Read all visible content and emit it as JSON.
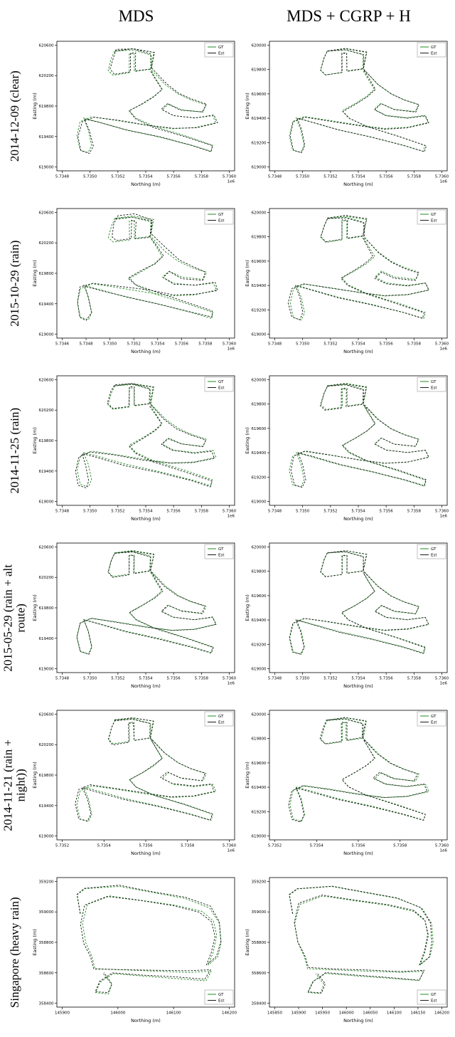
{
  "columns": [
    "MDS",
    "MDS + CGRP + H"
  ],
  "rows": [
    {
      "label": "2014-12-09 (clear)"
    },
    {
      "label": "2015-10-29 (rain)"
    },
    {
      "label": "2014-11-25 (rain)"
    },
    {
      "label": "2015-05-29 (rain + alt\nroute)"
    },
    {
      "label": "2014-11-21 (rain +\nnight))"
    },
    {
      "label": "Singapore (heavy rain)"
    }
  ],
  "colors": {
    "gt": "#228B22",
    "est": "#1a1a1a",
    "frame": "#000000",
    "legend_border": "#999999"
  },
  "routes": {
    "oxford": [
      [
        0.31,
        0.96
      ],
      [
        0.42,
        0.98
      ],
      [
        0.55,
        0.95
      ],
      [
        0.53,
        0.81
      ],
      [
        0.43,
        0.79
      ],
      [
        0.43,
        0.94
      ],
      [
        0.4,
        0.94
      ],
      [
        0.4,
        0.78
      ],
      [
        0.3,
        0.76
      ],
      [
        0.27,
        0.8
      ],
      [
        0.29,
        0.9
      ],
      [
        0.31,
        0.96
      ],
      [
        0.42,
        0.97
      ],
      [
        0.53,
        0.93
      ],
      [
        0.53,
        0.81
      ],
      [
        0.62,
        0.68
      ],
      [
        0.7,
        0.6
      ],
      [
        0.78,
        0.55
      ],
      [
        0.87,
        0.51
      ],
      [
        0.85,
        0.45
      ],
      [
        0.72,
        0.47
      ],
      [
        0.64,
        0.52
      ],
      [
        0.6,
        0.47
      ],
      [
        0.67,
        0.42
      ],
      [
        0.8,
        0.4
      ],
      [
        0.91,
        0.42
      ],
      [
        0.93,
        0.36
      ],
      [
        0.8,
        0.32
      ],
      [
        0.66,
        0.31
      ],
      [
        0.5,
        0.34
      ],
      [
        0.32,
        0.38
      ],
      [
        0.17,
        0.41
      ],
      [
        0.1,
        0.37
      ],
      [
        0.08,
        0.25
      ],
      [
        0.1,
        0.13
      ],
      [
        0.15,
        0.11
      ],
      [
        0.17,
        0.17
      ],
      [
        0.15,
        0.3
      ],
      [
        0.12,
        0.4
      ],
      [
        0.2,
        0.37
      ],
      [
        0.38,
        0.3
      ],
      [
        0.58,
        0.24
      ],
      [
        0.78,
        0.17
      ],
      [
        0.9,
        0.12
      ],
      [
        0.91,
        0.17
      ],
      [
        0.74,
        0.25
      ],
      [
        0.55,
        0.33
      ],
      [
        0.44,
        0.4
      ],
      [
        0.4,
        0.46
      ],
      [
        0.48,
        0.52
      ],
      [
        0.55,
        0.58
      ],
      [
        0.6,
        0.64
      ],
      [
        0.56,
        0.73
      ],
      [
        0.53,
        0.8
      ]
    ],
    "singapore": [
      [
        0.1,
        0.74
      ],
      [
        0.08,
        0.9
      ],
      [
        0.13,
        0.95
      ],
      [
        0.34,
        0.97
      ],
      [
        0.54,
        0.92
      ],
      [
        0.74,
        0.87
      ],
      [
        0.89,
        0.79
      ],
      [
        0.95,
        0.66
      ],
      [
        0.96,
        0.5
      ],
      [
        0.94,
        0.38
      ],
      [
        0.88,
        0.31
      ],
      [
        0.91,
        0.42
      ],
      [
        0.93,
        0.56
      ],
      [
        0.91,
        0.68
      ],
      [
        0.84,
        0.76
      ],
      [
        0.68,
        0.81
      ],
      [
        0.48,
        0.85
      ],
      [
        0.28,
        0.89
      ],
      [
        0.14,
        0.82
      ],
      [
        0.11,
        0.66
      ],
      [
        0.13,
        0.5
      ],
      [
        0.17,
        0.38
      ],
      [
        0.19,
        0.28
      ],
      [
        0.36,
        0.27
      ],
      [
        0.56,
        0.26
      ],
      [
        0.76,
        0.25
      ],
      [
        0.9,
        0.26
      ],
      [
        0.87,
        0.18
      ],
      [
        0.68,
        0.2
      ],
      [
        0.48,
        0.22
      ],
      [
        0.3,
        0.24
      ],
      [
        0.22,
        0.17
      ],
      [
        0.19,
        0.08
      ],
      [
        0.27,
        0.07
      ],
      [
        0.29,
        0.15
      ],
      [
        0.24,
        0.24
      ]
    ]
  },
  "chart_data": [
    {
      "type": "line",
      "row": 0,
      "col": 0,
      "route": "oxford",
      "xlabel": "Northing (m)",
      "ylabel": "Easting (m)",
      "x_offset_label": "1e6",
      "xticks": [
        "5.7348",
        "5.7350",
        "5.7352",
        "5.7354",
        "5.7356",
        "5.7358",
        "5.7360"
      ],
      "yticks": [
        "619000",
        "619400",
        "619800",
        "620200",
        "620600"
      ],
      "legend": {
        "loc": "upper right",
        "entries": [
          {
            "label": "GT",
            "color": "gt"
          },
          {
            "label": "Est",
            "color": "est"
          }
        ]
      },
      "series": [
        {
          "name": "GT",
          "color": "gt",
          "noise": 0.003,
          "seed": 21
        },
        {
          "name": "Est",
          "color": "est",
          "noise": 0.016,
          "seed": 2
        }
      ]
    },
    {
      "type": "line",
      "row": 0,
      "col": 1,
      "route": "oxford",
      "xlabel": "Northing (m)",
      "ylabel": "Easting (m)",
      "x_offset_label": "1e6",
      "xticks": [
        "5.7348",
        "5.7350",
        "5.7352",
        "5.7354",
        "5.7356",
        "5.7358",
        "5.7360"
      ],
      "yticks": [
        "619000",
        "619200",
        "619400",
        "619600",
        "619800",
        "620000"
      ],
      "legend": {
        "loc": "upper right",
        "entries": [
          {
            "label": "GT",
            "color": "gt"
          },
          {
            "label": "Est",
            "color": "est"
          }
        ]
      },
      "series": [
        {
          "name": "GT",
          "color": "gt",
          "noise": 0.003,
          "seed": 22
        },
        {
          "name": "Est",
          "color": "est",
          "noise": 0.007,
          "seed": 3
        }
      ]
    },
    {
      "type": "line",
      "row": 1,
      "col": 0,
      "route": "oxford",
      "xlabel": "Northing (m)",
      "ylabel": "Easting (m)",
      "x_offset_label": "1e6",
      "xticks": [
        "5.7346",
        "5.7348",
        "5.7350",
        "5.7352",
        "5.7354",
        "5.7356",
        "5.7358",
        "5.7360"
      ],
      "yticks": [
        "619000",
        "619400",
        "619800",
        "620200",
        "620600"
      ],
      "legend": {
        "loc": "upper right",
        "entries": [
          {
            "label": "GT",
            "color": "gt"
          },
          {
            "label": "Est",
            "color": "est"
          }
        ]
      },
      "series": [
        {
          "name": "GT",
          "color": "gt",
          "noise": 0.004,
          "seed": 23
        },
        {
          "name": "Est",
          "color": "est",
          "noise": 0.038,
          "seed": 5
        }
      ]
    },
    {
      "type": "line",
      "row": 1,
      "col": 1,
      "route": "oxford",
      "xlabel": "Northing (m)",
      "ylabel": "Easting (m)",
      "x_offset_label": "1e6",
      "xticks": [
        "5.7348",
        "5.7350",
        "5.7352",
        "5.7354",
        "5.7356",
        "5.7358",
        "5.7360"
      ],
      "yticks": [
        "619000",
        "619200",
        "619400",
        "619600",
        "619800",
        "620000"
      ],
      "legend": {
        "loc": "upper right",
        "entries": [
          {
            "label": "GT",
            "color": "gt"
          },
          {
            "label": "Est",
            "color": "est"
          }
        ]
      },
      "series": [
        {
          "name": "GT",
          "color": "gt",
          "noise": 0.003,
          "seed": 24
        },
        {
          "name": "Est",
          "color": "est",
          "noise": 0.012,
          "seed": 6
        }
      ]
    },
    {
      "type": "line",
      "row": 2,
      "col": 0,
      "route": "oxford",
      "xlabel": "Northing (m)",
      "ylabel": "Easting (m)",
      "x_offset_label": "1e6",
      "xticks": [
        "5.7348",
        "5.7350",
        "5.7352",
        "5.7354",
        "5.7356",
        "5.7358",
        "5.7360"
      ],
      "yticks": [
        "619000",
        "619400",
        "619800",
        "620200",
        "620600"
      ],
      "legend": {
        "loc": "upper right",
        "entries": [
          {
            "label": "GT",
            "color": "gt"
          },
          {
            "label": "Est",
            "color": "est"
          }
        ]
      },
      "series": [
        {
          "name": "GT",
          "color": "gt",
          "noise": 0.003,
          "seed": 25
        },
        {
          "name": "Est",
          "color": "est",
          "noise": 0.018,
          "seed": 8
        }
      ]
    },
    {
      "type": "line",
      "row": 2,
      "col": 1,
      "route": "oxford",
      "xlabel": "Northing (m)",
      "ylabel": "Easting (m)",
      "x_offset_label": "1e6",
      "xticks": [
        "5.7348",
        "5.7350",
        "5.7352",
        "5.7354",
        "5.7356",
        "5.7358",
        "5.7360"
      ],
      "yticks": [
        "619000",
        "619200",
        "619400",
        "619600",
        "619800",
        "620000"
      ],
      "legend": {
        "loc": "upper right",
        "entries": [
          {
            "label": "GT",
            "color": "gt"
          },
          {
            "label": "Est",
            "color": "est"
          }
        ]
      },
      "series": [
        {
          "name": "GT",
          "color": "gt",
          "noise": 0.003,
          "seed": 26
        },
        {
          "name": "Est",
          "color": "est",
          "noise": 0.008,
          "seed": 9
        }
      ]
    },
    {
      "type": "line",
      "row": 3,
      "col": 0,
      "route": "oxford",
      "xlabel": "Northing (m)",
      "ylabel": "Easting (m)",
      "x_offset_label": "1e6",
      "xticks": [
        "5.7348",
        "5.7350",
        "5.7352",
        "5.7354",
        "5.7356",
        "5.7358",
        "5.7360"
      ],
      "yticks": [
        "619000",
        "619400",
        "619800",
        "620200",
        "620600"
      ],
      "legend": {
        "loc": "upper right",
        "entries": [
          {
            "label": "GT",
            "color": "gt"
          },
          {
            "label": "Est",
            "color": "est"
          }
        ]
      },
      "series": [
        {
          "name": "GT",
          "color": "gt",
          "noise": 0.003,
          "seed": 27
        },
        {
          "name": "Est",
          "color": "est",
          "noise": 0.01,
          "seed": 10
        }
      ]
    },
    {
      "type": "line",
      "row": 3,
      "col": 1,
      "route": "oxford",
      "xlabel": "Northing (m)",
      "ylabel": "Easting (m)",
      "x_offset_label": "1e6",
      "xticks": [
        "5.7348",
        "5.7350",
        "5.7352",
        "5.7354",
        "5.7356",
        "5.7358",
        "5.7360"
      ],
      "yticks": [
        "619000",
        "619200",
        "619400",
        "619600",
        "619800",
        "620000"
      ],
      "legend": {
        "loc": "upper right",
        "entries": [
          {
            "label": "GT",
            "color": "gt"
          },
          {
            "label": "Est",
            "color": "est"
          }
        ]
      },
      "series": [
        {
          "name": "GT",
          "color": "gt",
          "noise": 0.003,
          "seed": 28
        },
        {
          "name": "Est",
          "color": "est",
          "noise": 0.006,
          "seed": 11
        }
      ]
    },
    {
      "type": "line",
      "row": 4,
      "col": 0,
      "route": "oxford",
      "xlabel": "Northing (m)",
      "ylabel": "Easting (m)",
      "x_offset_label": "1e6",
      "xticks": [
        "5.7352",
        "5.7354",
        "5.7356",
        "5.7358",
        "5.7360"
      ],
      "yticks": [
        "619000",
        "619400",
        "619800",
        "620200",
        "620600"
      ],
      "legend": {
        "loc": "upper right",
        "entries": [
          {
            "label": "GT",
            "color": "gt"
          },
          {
            "label": "Est",
            "color": "est"
          }
        ]
      },
      "series": [
        {
          "name": "GT",
          "color": "gt",
          "noise": 0.003,
          "seed": 29
        },
        {
          "name": "Est",
          "color": "est",
          "noise": 0.014,
          "seed": 12
        }
      ]
    },
    {
      "type": "line",
      "row": 4,
      "col": 1,
      "route": "oxford",
      "xlabel": "Northing (m)",
      "ylabel": "Easting (m)",
      "x_offset_label": "1e6",
      "xticks": [
        "5.7352",
        "5.7354",
        "5.7356",
        "5.7358",
        "5.7360"
      ],
      "yticks": [
        "619000",
        "619200",
        "619400",
        "619600",
        "619800",
        "620000"
      ],
      "legend": {
        "loc": "upper right",
        "entries": [
          {
            "label": "GT",
            "color": "gt"
          },
          {
            "label": "Est",
            "color": "est"
          }
        ]
      },
      "series": [
        {
          "name": "GT",
          "color": "gt",
          "noise": 0.003,
          "seed": 30
        },
        {
          "name": "Est",
          "color": "est",
          "noise": 0.008,
          "seed": 13
        }
      ]
    },
    {
      "type": "line",
      "row": 5,
      "col": 0,
      "route": "singapore",
      "xlabel": "Northing (m)",
      "ylabel": "Easting (m)",
      "x_offset_label": "",
      "xticks": [
        "145900",
        "146000",
        "146100",
        "146200"
      ],
      "yticks": [
        "358400",
        "358600",
        "358800",
        "359000",
        "359200"
      ],
      "legend": {
        "loc": "lower right",
        "entries": [
          {
            "label": "GT",
            "color": "gt"
          },
          {
            "label": "Est",
            "color": "est"
          }
        ]
      },
      "series": [
        {
          "name": "GT",
          "color": "gt",
          "noise": 0.004,
          "seed": 31
        },
        {
          "name": "Est",
          "color": "est",
          "noise": 0.02,
          "seed": 14
        }
      ]
    },
    {
      "type": "line",
      "row": 5,
      "col": 1,
      "route": "singapore",
      "xlabel": "Northing (m)",
      "ylabel": "Easting (m)",
      "x_offset_label": "",
      "xticks": [
        "145850",
        "145900",
        "145950",
        "146000",
        "146050",
        "146100",
        "146150",
        "146200"
      ],
      "yticks": [
        "358400",
        "358600",
        "358800",
        "359000",
        "359200"
      ],
      "legend": {
        "loc": "lower right",
        "entries": [
          {
            "label": "GT",
            "color": "gt"
          },
          {
            "label": "Est",
            "color": "est"
          }
        ]
      },
      "series": [
        {
          "name": "GT",
          "color": "gt",
          "noise": 0.004,
          "seed": 32
        },
        {
          "name": "Est",
          "color": "est",
          "noise": 0.012,
          "seed": 15
        }
      ]
    }
  ]
}
